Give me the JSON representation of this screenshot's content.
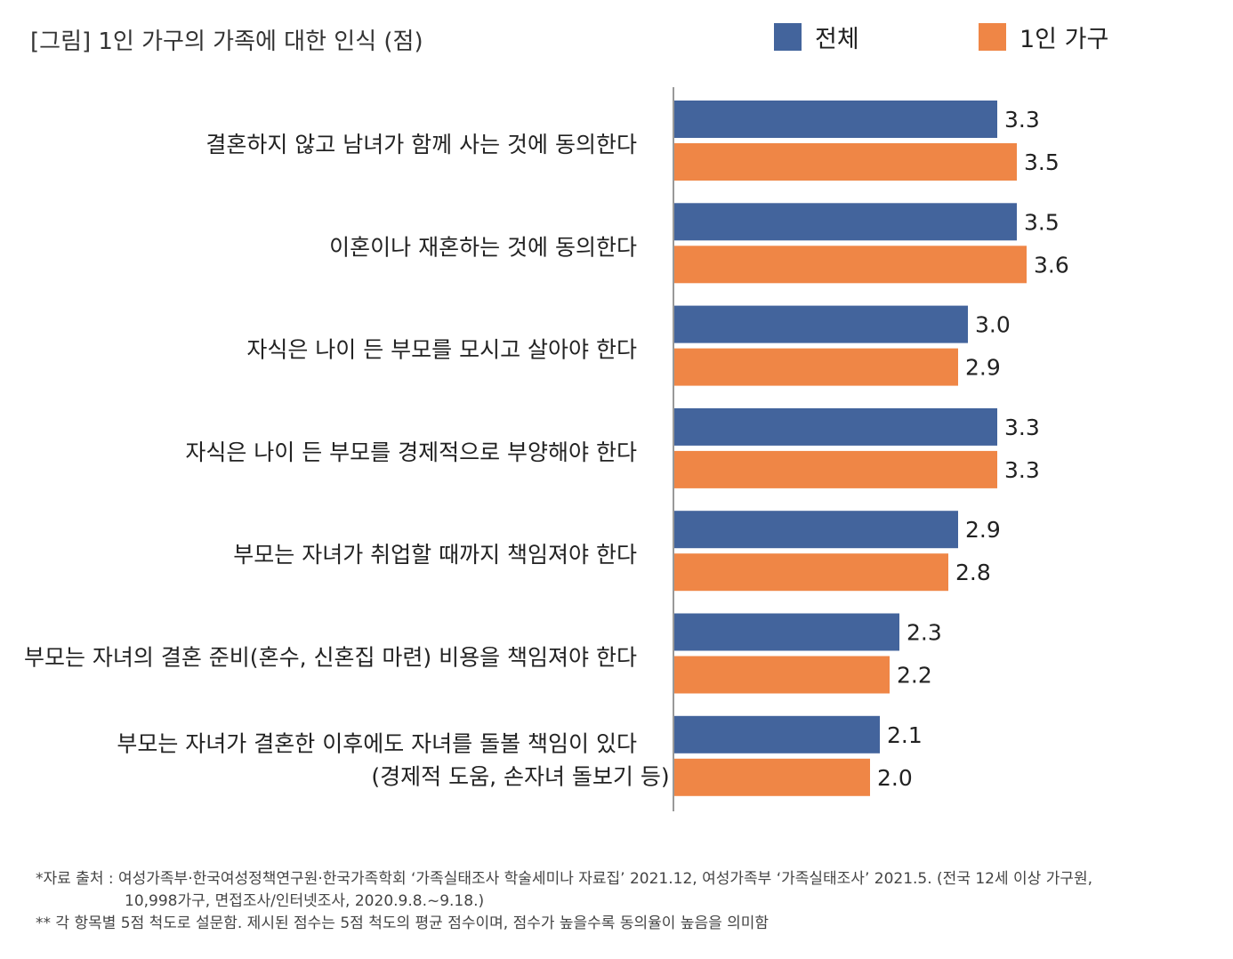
{
  "title": "[그림] 1인 가구의 가족에 대한 인식  (점)",
  "colors": {
    "total": "#43649C",
    "single": "#EF8646",
    "axis": "#999999"
  },
  "legend": [
    {
      "label": "전체",
      "color": "#43649C"
    },
    {
      "label": "1인 가구",
      "color": "#EF8646"
    }
  ],
  "chart_data": {
    "type": "bar",
    "orientation": "horizontal",
    "title": "[그림] 1인 가구의 가족에 대한 인식  (점)",
    "unit": "점",
    "legend_position": "top-right",
    "grid": false,
    "xlim": [
      0,
      5
    ],
    "categories": [
      [
        "결혼하지 않고 남녀가 함께 사는 것에 동의한다"
      ],
      [
        "이혼이나 재혼하는 것에 동의한다"
      ],
      [
        "자식은 나이 든 부모를 모시고 살아야 한다"
      ],
      [
        "자식은 나이 든 부모를 경제적으로 부양해야 한다"
      ],
      [
        "부모는 자녀가 취업할 때까지 책임져야 한다"
      ],
      [
        "부모는 자녀의 결혼 준비(혼수, 신혼집 마련) 비용을 책임져야 한다"
      ],
      [
        "부모는 자녀가 결혼한 이후에도 자녀를 돌볼 책임이 있다",
        "(경제적 도움, 손자녀 돌보기 등)"
      ]
    ],
    "series": [
      {
        "name": "전체",
        "color": "#43649C",
        "values": [
          3.3,
          3.5,
          3.0,
          3.3,
          2.9,
          2.3,
          2.1
        ],
        "labels": [
          "3.3",
          "3.5",
          "3.0",
          "3.3",
          "2.9",
          "2.3",
          "2.1"
        ]
      },
      {
        "name": "1인 가구",
        "color": "#EF8646",
        "values": [
          3.5,
          3.6,
          2.9,
          3.3,
          2.8,
          2.2,
          2.0
        ],
        "labels": [
          "3.5",
          "3.6",
          "2.9",
          "3.3",
          "2.8",
          "2.2",
          "2.0"
        ]
      }
    ]
  },
  "notes": {
    "source_line1": "*자료 출처 : 여성가족부·한국여성정책연구원·한국가족학회 ‘가족실태조사 학술세미나 자료집’ 2021.12, 여성가족부 ‘가족실태조사’ 2021.5. (전국 12세 이상 가구원,",
    "source_line2": "10,998가구, 면접조사/인터넷조사, 2020.9.8.~9.18.)",
    "scale_note": "** 각 항목별 5점 척도로 설문함. 제시된 점수는 5점 척도의 평균 점수이며, 점수가 높을수록 동의율이 높음을 의미함"
  }
}
